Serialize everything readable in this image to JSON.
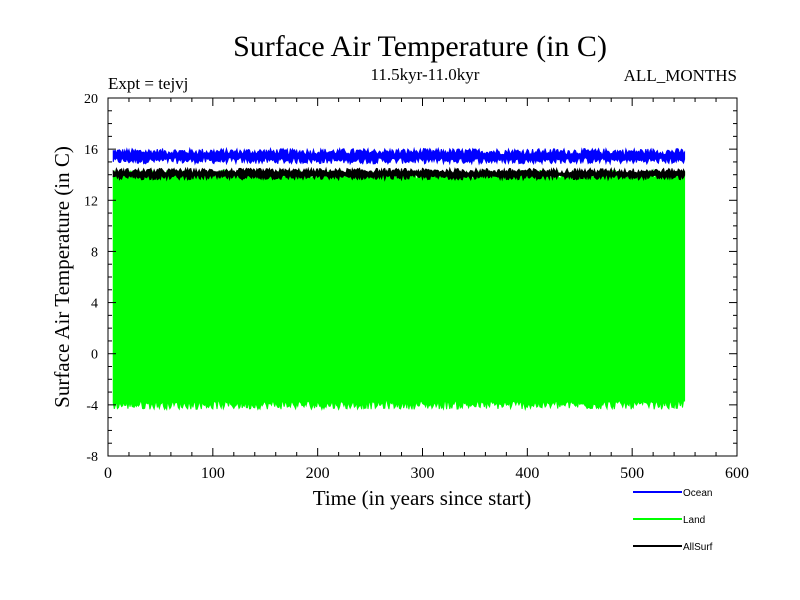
{
  "chart_data": {
    "type": "area",
    "title": "Surface Air Temperature (in C)",
    "subtitle": "11.5kyr-11.0kyr",
    "experiment_label": "Expt = tejvj",
    "months_label": "ALL_MONTHS",
    "xlabel": "Time (in years since start)",
    "ylabel": "Surface Air Temperature (in C)",
    "xlim": [
      0,
      600
    ],
    "ylim": [
      -8,
      20
    ],
    "x_ticks": [
      0,
      100,
      200,
      300,
      400,
      500,
      600
    ],
    "y_ticks": [
      -8,
      -4,
      0,
      4,
      8,
      12,
      16,
      20
    ],
    "x_minor_step": 20,
    "y_minor_step": 1,
    "series": [
      {
        "name": "Ocean",
        "color": "#0000ff",
        "x_range": [
          5,
          550
        ],
        "band": [
          15.1,
          15.8
        ],
        "noise": 0.25
      },
      {
        "name": "Land",
        "color": "#00ff00",
        "x_range": [
          5,
          550
        ],
        "band": [
          -4.0,
          14.0
        ],
        "noise": 0.35
      },
      {
        "name": "AllSurf",
        "color": "#000000",
        "x_range": [
          5,
          550
        ],
        "band": [
          13.8,
          14.3
        ],
        "noise": 0.2
      }
    ],
    "legend": {
      "position": "bottom-right",
      "entries": [
        "Ocean",
        "Land",
        "AllSurf"
      ]
    }
  }
}
